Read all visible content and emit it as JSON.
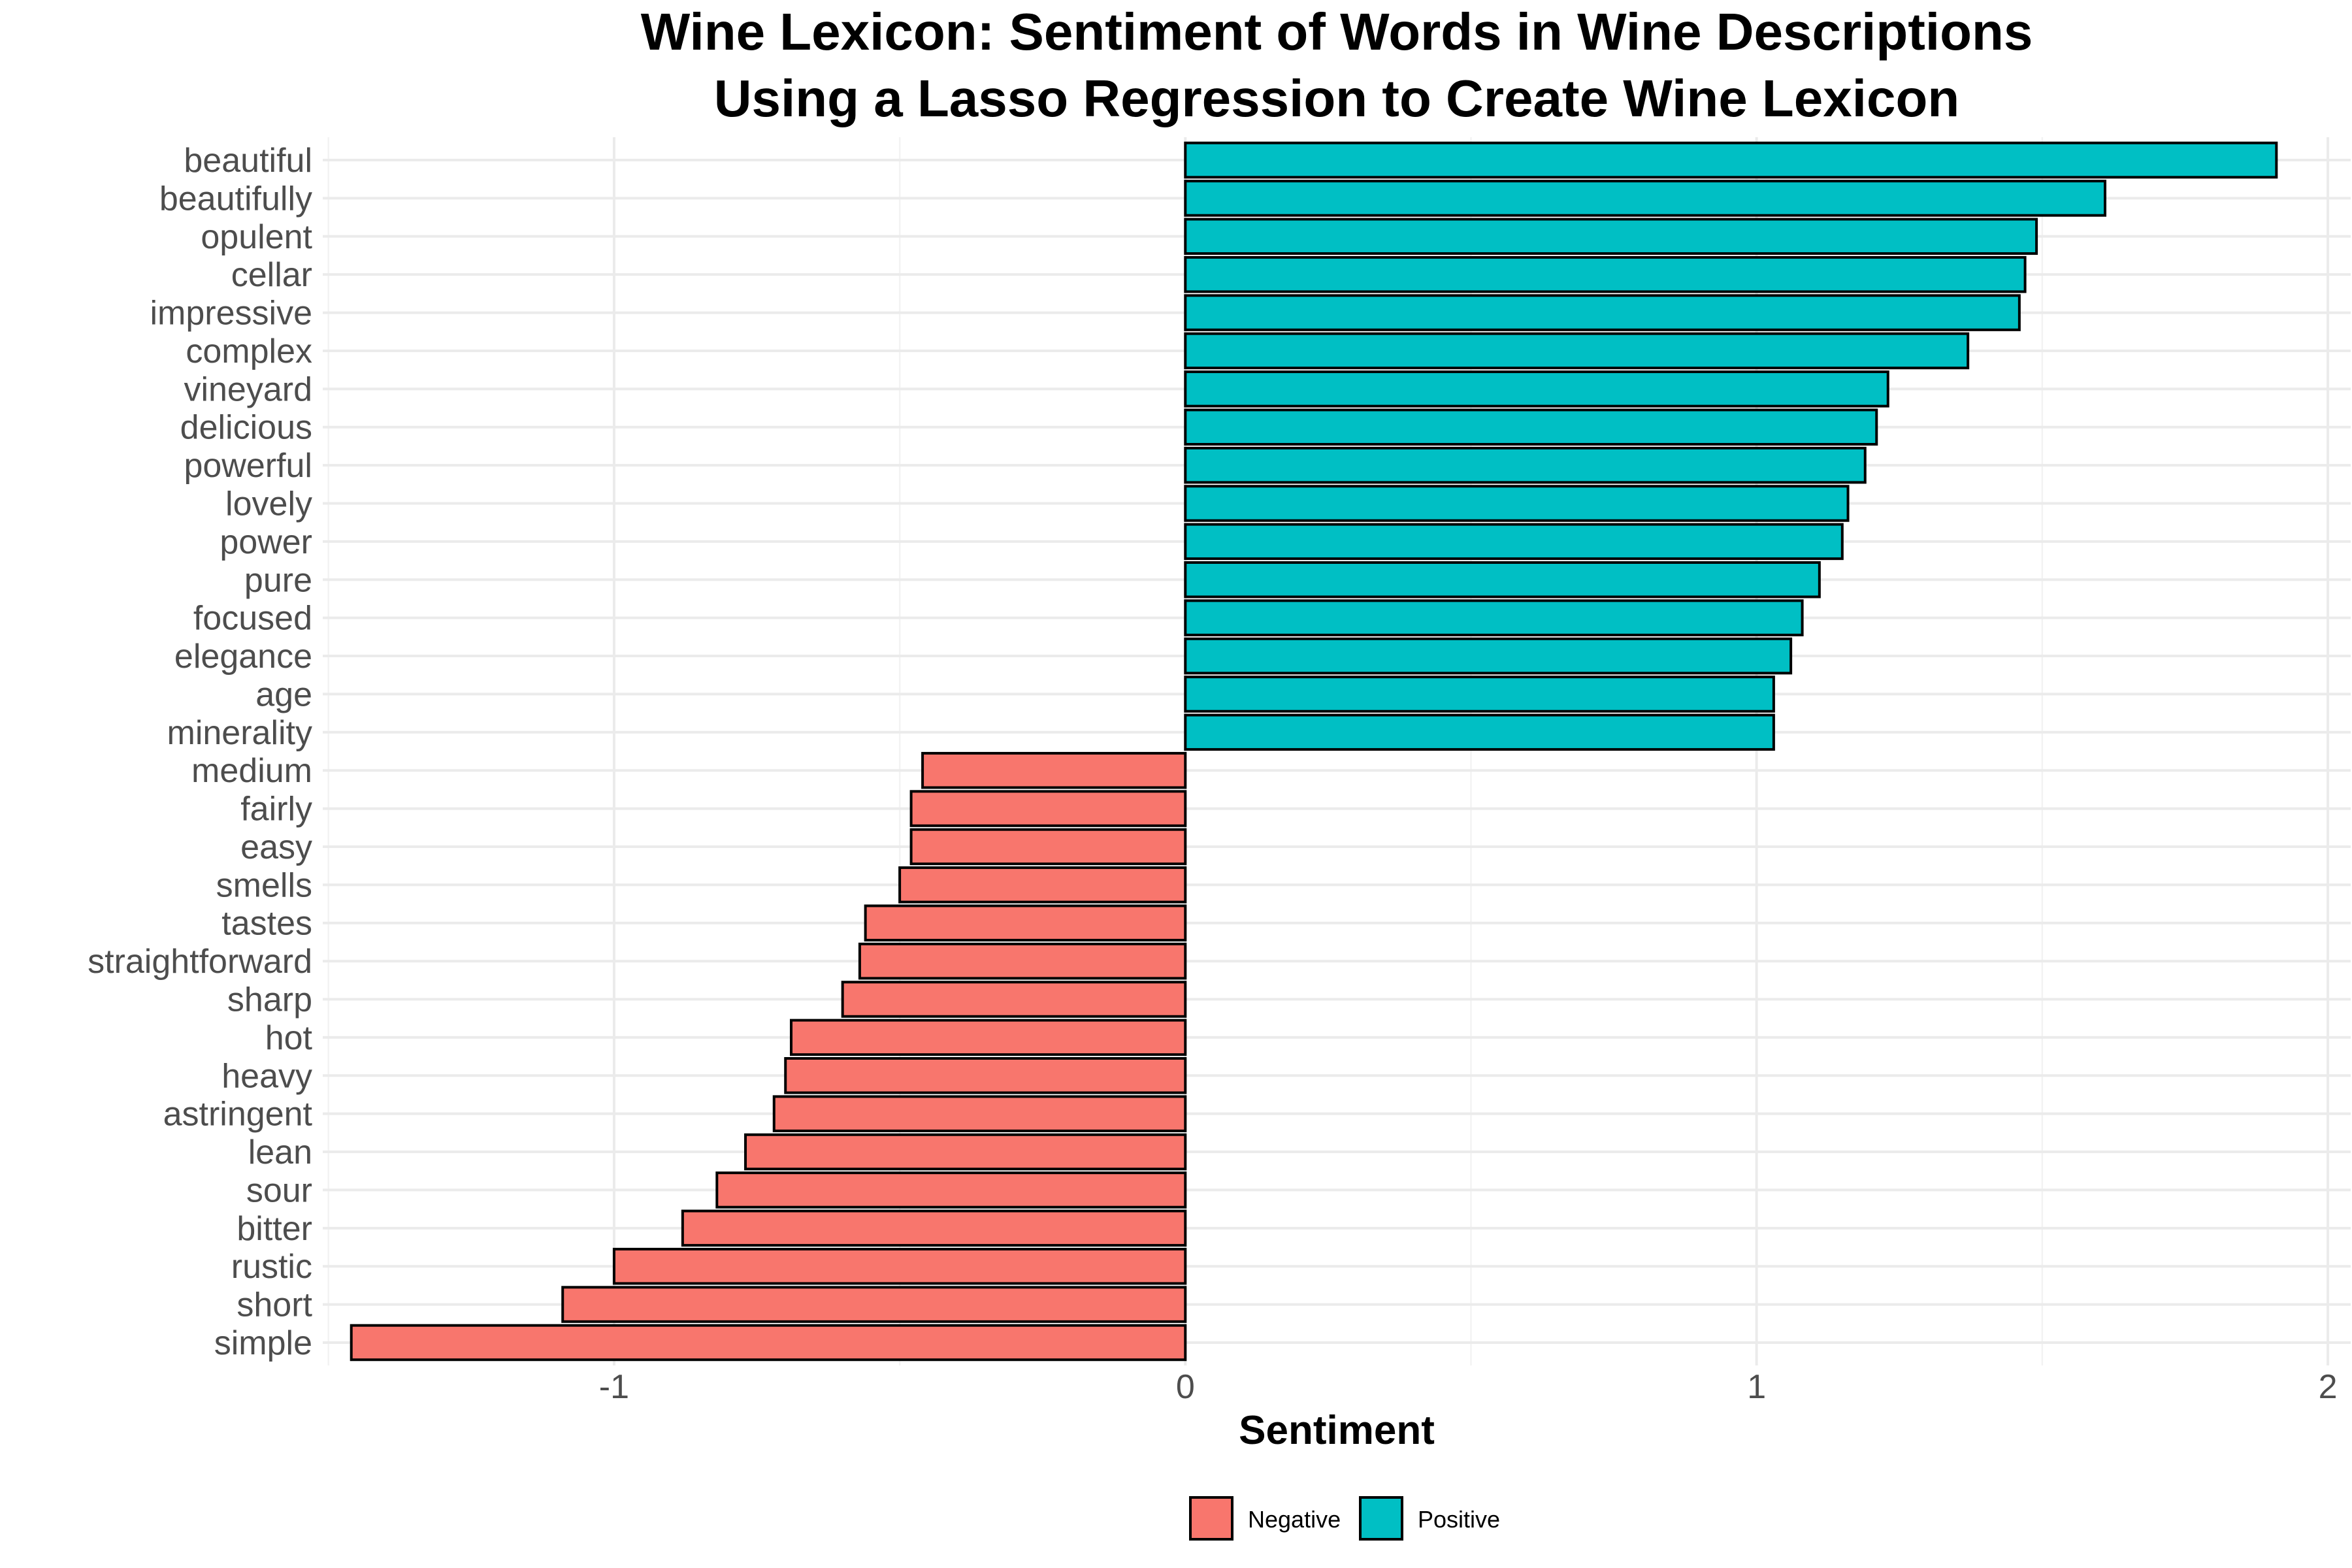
{
  "chart_data": {
    "type": "bar",
    "orientation": "horizontal",
    "title_lines": [
      "Wine Lexicon: Sentiment of Words in Wine Descriptions",
      "Using a Lasso Regression to Create Wine Lexicon"
    ],
    "xlabel": "Sentiment",
    "ylabel": "",
    "xlim": [
      -1.51,
      2.04
    ],
    "x_ticks": [
      -1,
      0,
      1,
      2
    ],
    "x_tick_labels": [
      "-1",
      "0",
      "1",
      "2"
    ],
    "grid": true,
    "legend": {
      "position": "bottom",
      "entries": [
        {
          "label": "Negative",
          "color": "#F8766D"
        },
        {
          "label": "Positive",
          "color": "#00BFC4"
        }
      ]
    },
    "colors": {
      "Negative": "#F8766D",
      "Positive": "#00BFC4"
    },
    "categories": [
      "beautiful",
      "beautifully",
      "opulent",
      "cellar",
      "impressive",
      "complex",
      "vineyard",
      "delicious",
      "powerful",
      "lovely",
      "power",
      "pure",
      "focused",
      "elegance",
      "age",
      "minerality",
      "medium",
      "fairly",
      "easy",
      "smells",
      "tastes",
      "straightforward",
      "sharp",
      "hot",
      "heavy",
      "astringent",
      "lean",
      "sour",
      "bitter",
      "rustic",
      "short",
      "simple"
    ],
    "values": [
      1.91,
      1.61,
      1.49,
      1.47,
      1.46,
      1.37,
      1.23,
      1.21,
      1.19,
      1.16,
      1.15,
      1.11,
      1.08,
      1.06,
      1.03,
      1.03,
      -0.46,
      -0.48,
      -0.48,
      -0.5,
      -0.56,
      -0.57,
      -0.6,
      -0.69,
      -0.7,
      -0.72,
      -0.77,
      -0.82,
      -0.88,
      -1.0,
      -1.09,
      -1.46
    ],
    "groups": [
      "Positive",
      "Positive",
      "Positive",
      "Positive",
      "Positive",
      "Positive",
      "Positive",
      "Positive",
      "Positive",
      "Positive",
      "Positive",
      "Positive",
      "Positive",
      "Positive",
      "Positive",
      "Positive",
      "Negative",
      "Negative",
      "Negative",
      "Negative",
      "Negative",
      "Negative",
      "Negative",
      "Negative",
      "Negative",
      "Negative",
      "Negative",
      "Negative",
      "Negative",
      "Negative",
      "Negative",
      "Negative"
    ]
  }
}
